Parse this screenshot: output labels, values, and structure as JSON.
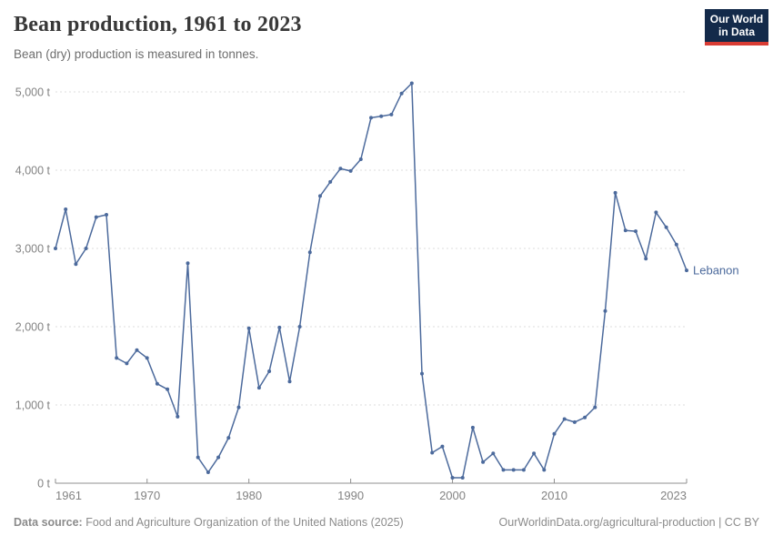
{
  "header": {
    "title": "Bean production, 1961 to 2023",
    "subtitle": "Bean (dry) production is measured in tonnes.",
    "logo": {
      "line1": "Our World",
      "line2": "in Data"
    }
  },
  "chart_data": {
    "type": "line",
    "title": "Bean production, 1961 to 2023",
    "subtitle": "Bean (dry) production is measured in tonnes.",
    "unit": "t",
    "xlim": [
      1961,
      2023
    ],
    "ylim": [
      0,
      5000
    ],
    "x_ticks": [
      1961,
      1970,
      1980,
      1990,
      2000,
      2010,
      2023
    ],
    "y_ticks": [
      0,
      1000,
      2000,
      3000,
      4000,
      5000
    ],
    "grid": "horizontal-dashed",
    "legend_position": "end-of-line-label",
    "series": [
      {
        "name": "Lebanon",
        "color": "#4C6A9C",
        "x": [
          1961,
          1962,
          1963,
          1964,
          1965,
          1966,
          1967,
          1968,
          1969,
          1970,
          1971,
          1972,
          1973,
          1974,
          1975,
          1976,
          1977,
          1978,
          1979,
          1980,
          1981,
          1982,
          1983,
          1984,
          1985,
          1986,
          1987,
          1988,
          1989,
          1990,
          1991,
          1992,
          1993,
          1994,
          1995,
          1996,
          1997,
          1998,
          1999,
          2000,
          2001,
          2002,
          2003,
          2004,
          2005,
          2006,
          2007,
          2008,
          2009,
          2010,
          2011,
          2012,
          2013,
          2014,
          2015,
          2016,
          2017,
          2018,
          2019,
          2020,
          2021,
          2022,
          2023
        ],
        "values": [
          3000,
          3500,
          2800,
          3000,
          3400,
          3430,
          1600,
          1530,
          1700,
          1600,
          1270,
          1200,
          850,
          2810,
          330,
          140,
          330,
          580,
          970,
          1980,
          1220,
          1430,
          1990,
          1300,
          2000,
          2950,
          3670,
          3850,
          4020,
          3990,
          4140,
          4670,
          4690,
          4710,
          4980,
          5110,
          1400,
          390,
          470,
          70,
          70,
          710,
          270,
          380,
          170,
          170,
          170,
          380,
          170,
          630,
          820,
          780,
          840,
          970,
          2200,
          3710,
          3230,
          3220,
          2870,
          3460,
          3270,
          3050,
          2720
        ]
      }
    ]
  },
  "colors": {
    "line": "#4C6A9C",
    "grid": "#DDDDDD",
    "axis": "#8F8F8F",
    "tick_label": "#838383",
    "logo_bg": "#132A4A",
    "logo_accent": "#D93C34"
  },
  "footer": {
    "source_label": "Data source:",
    "source_text": " Food and Agriculture Organization of the United Nations (2025)",
    "link_text": "OurWorldinData.org/agricultural-production | CC BY"
  }
}
